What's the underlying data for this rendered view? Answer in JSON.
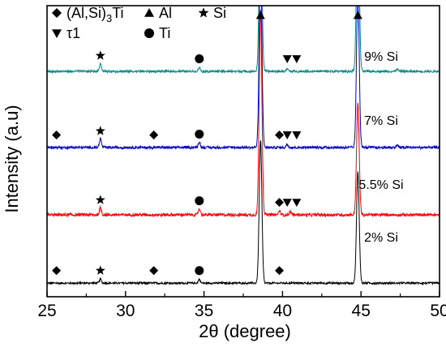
{
  "chart_data": {
    "type": "line",
    "xlabel": "2θ (degree)",
    "ylabel": "Intensity (a.u)",
    "xlim": [
      25,
      50
    ],
    "x_ticks": [
      "25",
      "30",
      "35",
      "40",
      "45",
      "50"
    ],
    "grid": false,
    "legend_placement": "top-left",
    "legend": [
      {
        "symbol": "diamond",
        "label": "(Al,Si)",
        "sub": "3",
        "tail": "Ti"
      },
      {
        "symbol": "triangle-up",
        "label": "Al"
      },
      {
        "symbol": "star",
        "label": "Si"
      },
      {
        "symbol": "triangle-down",
        "label": "τ1"
      },
      {
        "symbol": "circle",
        "label": "Ti"
      }
    ],
    "series": [
      {
        "label": "2% Si",
        "color": "#000000",
        "baseline": 0.12,
        "noise": 0.012,
        "peaks": [
          [
            28.4,
            0.05
          ],
          [
            34.7,
            0.05
          ],
          [
            38.6,
            1.8
          ],
          [
            44.8,
            1.4
          ]
        ],
        "markers": [
          {
            "symbol": "diamond",
            "x": 25.6
          },
          {
            "symbol": "star",
            "x": 28.4
          },
          {
            "symbol": "diamond",
            "x": 31.8
          },
          {
            "symbol": "circle",
            "x": 34.7
          },
          {
            "symbol": "diamond",
            "x": 39.8
          }
        ]
      },
      {
        "label": "5.5% Si",
        "color": "#ff0000",
        "baseline": 0.98,
        "noise": 0.018,
        "peaks": [
          [
            28.4,
            0.09
          ],
          [
            34.7,
            0.08
          ],
          [
            38.6,
            2.6
          ],
          [
            39.8,
            0.05
          ],
          [
            40.5,
            0.04
          ],
          [
            44.8,
            1.4
          ]
        ],
        "markers": [
          {
            "symbol": "star",
            "x": 28.4
          },
          {
            "symbol": "circle",
            "x": 34.7
          },
          {
            "symbol": "diamond",
            "x": 39.8
          },
          {
            "symbol": "triangle-down",
            "x": 40.3
          },
          {
            "symbol": "triangle-down",
            "x": 40.9
          }
        ]
      },
      {
        "label": "7% Si",
        "color": "#0000cc",
        "baseline": 1.83,
        "noise": 0.016,
        "peaks": [
          [
            28.4,
            0.11
          ],
          [
            34.7,
            0.07
          ],
          [
            38.6,
            2.4
          ],
          [
            40.3,
            0.04
          ],
          [
            44.8,
            2.0
          ],
          [
            47.3,
            0.03
          ]
        ],
        "markers": [
          {
            "symbol": "diamond",
            "x": 25.6
          },
          {
            "symbol": "star",
            "x": 28.4
          },
          {
            "symbol": "diamond",
            "x": 31.8
          },
          {
            "symbol": "circle",
            "x": 34.7
          },
          {
            "symbol": "diamond",
            "x": 39.8
          },
          {
            "symbol": "triangle-down",
            "x": 40.3
          },
          {
            "symbol": "triangle-down",
            "x": 40.9
          }
        ]
      },
      {
        "label": "9% Si",
        "color": "#008b8b",
        "baseline": 2.79,
        "noise": 0.014,
        "peaks": [
          [
            28.4,
            0.1
          ],
          [
            34.7,
            0.05
          ],
          [
            38.6,
            2.2
          ],
          [
            40.3,
            0.03
          ],
          [
            44.8,
            2.3
          ],
          [
            47.3,
            0.03
          ]
        ],
        "markers": [
          {
            "symbol": "star",
            "x": 28.4
          },
          {
            "symbol": "circle",
            "x": 34.7
          },
          {
            "symbol": "triangle-down",
            "x": 40.3
          },
          {
            "symbol": "triangle-down",
            "x": 40.9
          }
        ]
      },
      {
        "label": "",
        "color": "#000000",
        "baseline": null,
        "noise": 0,
        "peaks": [],
        "markers": [
          {
            "symbol": "triangle-up",
            "x": 38.6
          },
          {
            "symbol": "triangle-up",
            "x": 44.8
          }
        ]
      }
    ]
  }
}
